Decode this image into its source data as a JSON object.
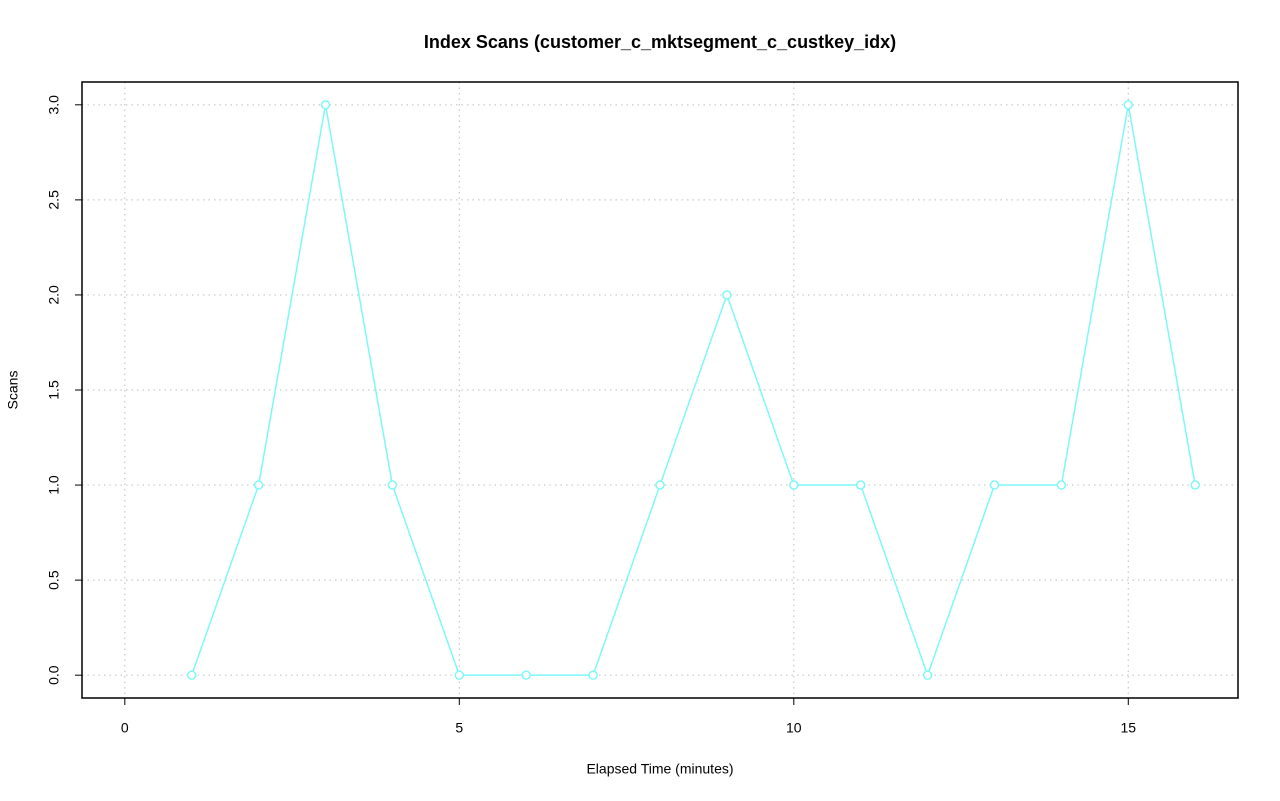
{
  "chart_data": {
    "type": "line",
    "title": "Index Scans (customer_c_mktsegment_c_custkey_idx)",
    "x_label": "Elapsed Time (minutes)",
    "y_label": "Scans",
    "x": [
      1,
      2,
      3,
      4,
      5,
      6,
      7,
      8,
      9,
      10,
      11,
      12,
      13,
      14,
      15,
      16
    ],
    "values": [
      0,
      1,
      3,
      1,
      0,
      0,
      0,
      1,
      2,
      1,
      1,
      0,
      1,
      1,
      3,
      1
    ],
    "color": "#7ff7f7",
    "markers": "circle",
    "xlim": [
      -0.64,
      16.64
    ],
    "xticks": [
      0,
      5,
      10,
      15
    ],
    "ylim": [
      -0.12,
      3.12
    ],
    "yticks": [
      {
        "value": 0,
        "label": "0.0"
      },
      0.5,
      {
        "value": 1,
        "label": "1.0"
      },
      1.5,
      {
        "value": 2,
        "label": "2.0"
      },
      2.5,
      {
        "value": 3,
        "label": "3.0"
      }
    ],
    "grid": true
  }
}
